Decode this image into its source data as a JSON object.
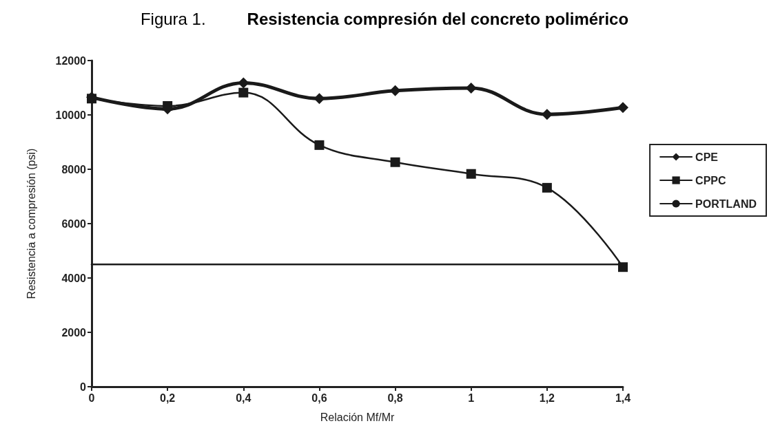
{
  "chart_data": {
    "type": "line",
    "title": "Figura 1.",
    "subtitle": "Resistencia compresión del concreto polimérico",
    "xlabel": "Relación Mf/Mr",
    "ylabel": "Resistencia a compresión (psi)",
    "x": [
      0,
      0.2,
      0.4,
      0.6,
      0.8,
      1,
      1.2,
      1.4
    ],
    "series": [
      {
        "name": "CPE",
        "color": "#1a1a1a",
        "marker": "diamond",
        "values": [
          10650,
          10220,
          11180,
          10600,
          10890,
          10990,
          10020,
          10270
        ]
      },
      {
        "name": "CPPC",
        "color": "#1a1a1a",
        "marker": "square",
        "values": [
          10600,
          10330,
          10820,
          8890,
          8260,
          7830,
          7320,
          4400
        ]
      },
      {
        "name": "PORTLAND",
        "color": "#1a1a1a",
        "marker": "none",
        "values": [
          4500,
          4500,
          4500,
          4500,
          4500,
          4500,
          4500,
          4500
        ]
      }
    ],
    "xlim": [
      0,
      1.4
    ],
    "xticks": [
      0,
      {
        "value": 0.2,
        "label": "0,2"
      },
      {
        "value": 0.4,
        "label": "0,4"
      },
      {
        "value": 0.6,
        "label": "0,6"
      },
      {
        "value": 0.8,
        "label": "0,8"
      },
      1,
      {
        "value": 1.2,
        "label": "1,2"
      },
      {
        "value": 1.4,
        "label": "1,4"
      }
    ],
    "ylim": [
      0,
      12000
    ],
    "yticks": [
      0,
      2000,
      4000,
      6000,
      8000,
      10000,
      12000
    ],
    "grid": false,
    "legend": "right",
    "line_style": "solid"
  }
}
